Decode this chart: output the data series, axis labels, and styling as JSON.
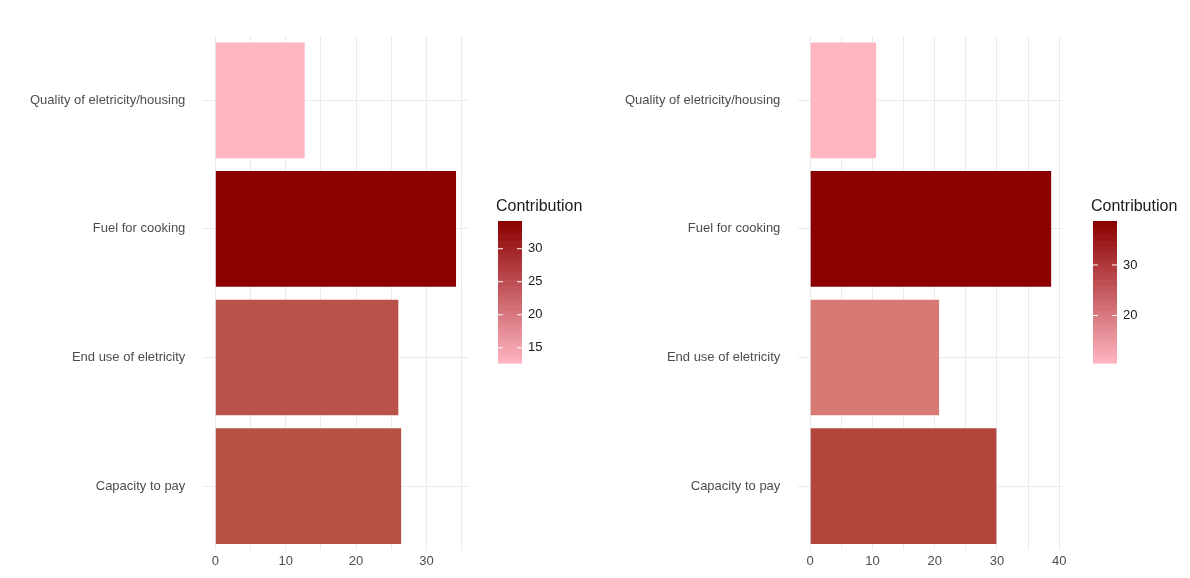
{
  "chart_data": [
    {
      "type": "bar",
      "orientation": "horizontal",
      "categories": [
        "Quality of eletricity/housing",
        "Fuel for cooking",
        "End use of eletricity",
        "Capacity to pay"
      ],
      "values": [
        12.7,
        34.2,
        26.0,
        26.4
      ],
      "colors": [
        "#ffb6c1",
        "#8b0000",
        "#bb5249",
        "#b84f45"
      ],
      "xlim": [
        -1.7,
        35.9
      ],
      "xticks": [
        0,
        {
          "value": 5,
          "label": null
        },
        10,
        {
          "value": 15,
          "label": null
        },
        20,
        {
          "value": 25,
          "label": null
        },
        30,
        {
          "value": 35,
          "label": null
        }
      ],
      "grid": true,
      "clabel": "Contribution",
      "clim": [
        12.7,
        34.2
      ],
      "cticks": [
        15,
        20,
        25,
        30
      ]
    },
    {
      "type": "bar",
      "orientation": "horizontal",
      "categories": [
        "Quality of eletricity/housing",
        "Fuel for cooking",
        "End use of eletricity",
        "Capacity to pay"
      ],
      "values": [
        10.6,
        38.7,
        20.7,
        29.9
      ],
      "colors": [
        "#ffb6c1",
        "#8b0000",
        "#d77a74",
        "#b3463c"
      ],
      "xlim": [
        -1.9,
        40.6
      ],
      "xticks": [
        0,
        {
          "value": 5,
          "label": null
        },
        10,
        {
          "value": 15,
          "label": null
        },
        20,
        {
          "value": 25,
          "label": null
        },
        30,
        {
          "value": 35,
          "label": null
        },
        40
      ],
      "grid": true,
      "clabel": "Contribution",
      "clim": [
        10.6,
        38.7
      ],
      "cticks": [
        20,
        30
      ]
    }
  ]
}
